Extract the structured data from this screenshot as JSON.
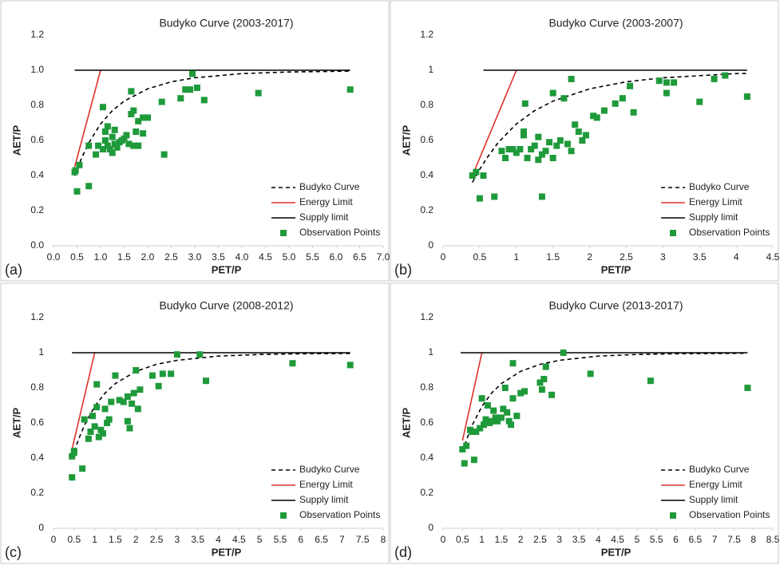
{
  "chart_data": [
    {
      "type": "scatter",
      "title": "Budyko Curve (2003-2017)",
      "panel_label": "(a)",
      "x_label": "PET/P",
      "y_label": "AET/P",
      "xlim": [
        0,
        7
      ],
      "ylim": [
        0,
        1.2
      ],
      "xticks": [
        {
          "value": 0,
          "label": "0.0"
        },
        0.5,
        {
          "value": 1,
          "label": "1.0"
        },
        1.5,
        {
          "value": 2,
          "label": "2.0"
        },
        2.5,
        {
          "value": 3,
          "label": "3.0"
        },
        3.5,
        {
          "value": 4,
          "label": "4.0"
        },
        4.5,
        {
          "value": 5,
          "label": "5.0"
        },
        5.5,
        {
          "value": 6,
          "label": "6.0"
        },
        6.5,
        {
          "value": 7,
          "label": "7.0"
        }
      ],
      "yticks": [
        {
          "value": 0,
          "label": "0.0"
        },
        0.2,
        0.4,
        0.6,
        0.8,
        {
          "value": 1,
          "label": "1.0"
        },
        1.2
      ],
      "series": [
        {
          "name": "Budyko Curve",
          "color": "#000000",
          "mode": "dashed-line",
          "x": [
            0.45,
            0.5,
            0.6,
            0.75,
            1,
            1.25,
            1.5,
            2,
            2.5,
            3,
            4,
            5,
            6.3
          ],
          "values": [
            0.399,
            0.436,
            0.502,
            0.587,
            0.694,
            0.77,
            0.824,
            0.894,
            0.934,
            0.957,
            0.981,
            0.99,
            0.995
          ]
        },
        {
          "name": "Energy Limit",
          "color": "#e0302a",
          "mode": "line",
          "x": [
            0.45,
            1
          ],
          "values": [
            0.45,
            1
          ]
        },
        {
          "name": "Supply limit",
          "color": "#000000",
          "mode": "line",
          "x": [
            0.45,
            6.3
          ],
          "values": [
            1,
            1
          ]
        },
        {
          "name": "Observation Points",
          "color": "#1f9a3a",
          "mode": "markers",
          "x": [
            0.45,
            0.47,
            0.5,
            0.55,
            0.75,
            0.75,
            0.9,
            0.95,
            1.05,
            1.05,
            1.1,
            1.1,
            1.15,
            1.15,
            1.2,
            1.25,
            1.25,
            1.3,
            1.3,
            1.35,
            1.4,
            1.45,
            1.5,
            1.55,
            1.6,
            1.65,
            1.65,
            1.7,
            1.7,
            1.75,
            1.8,
            1.8,
            1.9,
            1.9,
            2.0,
            2.3,
            2.35,
            2.7,
            2.8,
            2.9,
            2.95,
            3.05,
            3.2,
            4.35,
            6.3
          ],
          "values": [
            0.42,
            0.43,
            0.31,
            0.46,
            0.34,
            0.57,
            0.52,
            0.57,
            0.79,
            0.55,
            0.65,
            0.6,
            0.68,
            0.57,
            0.55,
            0.53,
            0.62,
            0.58,
            0.66,
            0.56,
            0.59,
            0.6,
            0.61,
            0.63,
            0.58,
            0.88,
            0.75,
            0.77,
            0.57,
            0.65,
            0.71,
            0.57,
            0.73,
            0.64,
            0.73,
            0.82,
            0.52,
            0.84,
            0.89,
            0.89,
            0.98,
            0.9,
            0.83,
            0.87,
            0.89
          ]
        }
      ]
    },
    {
      "type": "scatter",
      "title": "Budyko Curve (2003-2007)",
      "panel_label": "(b)",
      "x_label": "PET/P",
      "y_label": "AET/P",
      "xlim": [
        0,
        4.5
      ],
      "ylim": [
        0,
        1.2
      ],
      "xticks": [
        0,
        0.5,
        1,
        1.5,
        2,
        2.5,
        3,
        3.5,
        4,
        4.5
      ],
      "yticks": [
        0,
        0.2,
        0.4,
        0.6,
        0.8,
        1,
        1.2
      ],
      "series": [
        {
          "name": "Budyko Curve",
          "color": "#000000",
          "mode": "dashed-line",
          "x": [
            0.4,
            0.5,
            0.6,
            0.75,
            1,
            1.25,
            1.5,
            2,
            2.5,
            3,
            4,
            4.15
          ],
          "values": [
            0.361,
            0.436,
            0.502,
            0.587,
            0.694,
            0.77,
            0.824,
            0.894,
            0.934,
            0.957,
            0.981,
            0.982
          ]
        },
        {
          "name": "Energy Limit",
          "color": "#e0302a",
          "mode": "line",
          "x": [
            0.4,
            1
          ],
          "values": [
            0.4,
            1
          ]
        },
        {
          "name": "Supply limit",
          "color": "#000000",
          "mode": "line",
          "x": [
            0.55,
            4.15
          ],
          "values": [
            1,
            1
          ]
        },
        {
          "name": "Observation Points",
          "color": "#1f9a3a",
          "mode": "markers",
          "x": [
            0.4,
            0.45,
            0.5,
            0.55,
            0.7,
            0.8,
            0.85,
            0.9,
            0.95,
            1.0,
            1.05,
            1.1,
            1.1,
            1.12,
            1.15,
            1.2,
            1.25,
            1.3,
            1.3,
            1.35,
            1.35,
            1.4,
            1.45,
            1.5,
            1.5,
            1.55,
            1.6,
            1.65,
            1.7,
            1.75,
            1.75,
            1.8,
            1.85,
            1.9,
            1.95,
            2.05,
            2.1,
            2.2,
            2.35,
            2.45,
            2.55,
            2.6,
            2.95,
            3.05,
            3.05,
            3.15,
            3.5,
            3.7,
            3.85,
            4.15
          ],
          "values": [
            0.4,
            0.42,
            0.27,
            0.4,
            0.28,
            0.54,
            0.5,
            0.55,
            0.55,
            0.53,
            0.55,
            0.65,
            0.63,
            0.81,
            0.5,
            0.55,
            0.57,
            0.49,
            0.62,
            0.28,
            0.52,
            0.54,
            0.59,
            0.87,
            0.5,
            0.57,
            0.6,
            0.84,
            0.58,
            0.95,
            0.54,
            0.69,
            0.65,
            0.6,
            0.63,
            0.74,
            0.73,
            0.77,
            0.81,
            0.84,
            0.91,
            0.76,
            0.94,
            0.87,
            0.93,
            0.93,
            0.82,
            0.95,
            0.97,
            0.85
          ]
        }
      ]
    },
    {
      "type": "scatter",
      "title": "Budyko Curve (2008-2012)",
      "panel_label": "(c)",
      "x_label": "PET/P",
      "y_label": "AET/P",
      "xlim": [
        0,
        8
      ],
      "ylim": [
        0,
        1.2
      ],
      "xticks": [
        0,
        0.5,
        1,
        1.5,
        2,
        2.5,
        3,
        3.5,
        4,
        4.5,
        5,
        5.5,
        6,
        6.5,
        7,
        7.5,
        8
      ],
      "yticks": [
        0,
        0.2,
        0.4,
        0.6,
        0.8,
        1,
        1.2
      ],
      "series": [
        {
          "name": "Budyko Curve",
          "color": "#000000",
          "mode": "dashed-line",
          "x": [
            0.45,
            0.5,
            0.6,
            0.75,
            1,
            1.25,
            1.5,
            2,
            2.5,
            3,
            4,
            5,
            6,
            7.2
          ],
          "values": [
            0.399,
            0.436,
            0.502,
            0.587,
            0.694,
            0.77,
            0.824,
            0.894,
            0.934,
            0.957,
            0.981,
            0.99,
            0.994,
            0.996
          ]
        },
        {
          "name": "Energy Limit",
          "color": "#e0302a",
          "mode": "line",
          "x": [
            0.45,
            1
          ],
          "values": [
            0.45,
            1
          ]
        },
        {
          "name": "Supply limit",
          "color": "#000000",
          "mode": "line",
          "x": [
            0.45,
            7.2
          ],
          "values": [
            1,
            1
          ]
        },
        {
          "name": "Observation Points",
          "color": "#1f9a3a",
          "mode": "markers",
          "x": [
            0.45,
            0.45,
            0.5,
            0.5,
            0.7,
            0.75,
            0.85,
            0.9,
            0.95,
            1.0,
            1.05,
            1.05,
            1.1,
            1.15,
            1.2,
            1.25,
            1.3,
            1.35,
            1.4,
            1.5,
            1.6,
            1.7,
            1.8,
            1.8,
            1.85,
            1.9,
            1.95,
            2.0,
            2.05,
            2.1,
            2.4,
            2.55,
            2.65,
            2.85,
            3.0,
            3.55,
            3.7,
            5.8,
            7.2
          ],
          "values": [
            0.29,
            0.41,
            0.43,
            0.44,
            0.34,
            0.62,
            0.51,
            0.55,
            0.64,
            0.58,
            0.82,
            0.69,
            0.52,
            0.56,
            0.54,
            0.68,
            0.6,
            0.62,
            0.72,
            0.87,
            0.73,
            0.72,
            0.75,
            0.61,
            0.57,
            0.71,
            0.77,
            0.9,
            0.68,
            0.79,
            0.87,
            0.81,
            0.88,
            0.88,
            0.99,
            0.99,
            0.84,
            0.94,
            0.93
          ]
        }
      ]
    },
    {
      "type": "scatter",
      "title": "Budyko Curve (2013-2017)",
      "panel_label": "(d)",
      "x_label": "PET/P",
      "y_label": "AET/P",
      "xlim": [
        0,
        8.5
      ],
      "ylim": [
        0,
        1.2
      ],
      "xticks": [
        0,
        0.5,
        1,
        1.5,
        2,
        2.5,
        3,
        3.5,
        4,
        4.5,
        5,
        5.5,
        6,
        6.5,
        7,
        7.5,
        8,
        8.5
      ],
      "yticks": [
        0,
        0.2,
        0.4,
        0.6,
        0.8,
        1,
        1.2
      ],
      "series": [
        {
          "name": "Budyko Curve",
          "color": "#000000",
          "mode": "dashed-line",
          "x": [
            0.5,
            0.6,
            0.75,
            1,
            1.25,
            1.5,
            2,
            2.5,
            3,
            4,
            5,
            6,
            7.8
          ],
          "values": [
            0.436,
            0.502,
            0.587,
            0.694,
            0.77,
            0.824,
            0.894,
            0.934,
            0.957,
            0.981,
            0.99,
            0.994,
            0.997
          ]
        },
        {
          "name": "Energy Limit",
          "color": "#e0302a",
          "mode": "line",
          "x": [
            0.5,
            1
          ],
          "values": [
            0.5,
            1
          ]
        },
        {
          "name": "Supply limit",
          "color": "#000000",
          "mode": "line",
          "x": [
            0.45,
            7.85
          ],
          "values": [
            1,
            1
          ]
        },
        {
          "name": "Observation Points",
          "color": "#1f9a3a",
          "mode": "markers",
          "x": [
            0.5,
            0.55,
            0.6,
            0.7,
            0.75,
            0.8,
            0.85,
            0.95,
            1.0,
            1.05,
            1.1,
            1.15,
            1.2,
            1.25,
            1.3,
            1.35,
            1.4,
            1.5,
            1.55,
            1.6,
            1.65,
            1.7,
            1.75,
            1.8,
            1.8,
            1.9,
            2.0,
            2.1,
            2.5,
            2.55,
            2.6,
            2.65,
            2.8,
            3.1,
            3.8,
            5.35,
            7.85
          ],
          "values": [
            0.45,
            0.37,
            0.47,
            0.56,
            0.55,
            0.39,
            0.55,
            0.57,
            0.74,
            0.59,
            0.62,
            0.7,
            0.6,
            0.61,
            0.67,
            0.63,
            0.61,
            0.63,
            0.68,
            0.8,
            0.66,
            0.61,
            0.59,
            0.94,
            0.74,
            0.64,
            0.77,
            0.78,
            0.83,
            0.79,
            0.85,
            0.92,
            0.76,
            1.0,
            0.88,
            0.84,
            0.8
          ]
        }
      ]
    }
  ]
}
